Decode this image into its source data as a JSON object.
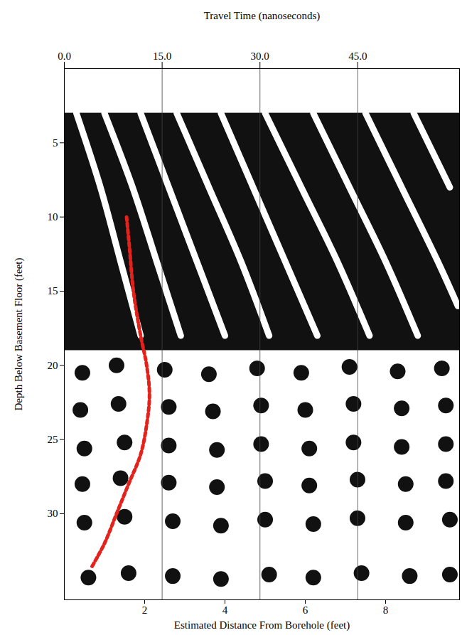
{
  "chart_data": {
    "type": "radargram",
    "x_label": "Estimated Distance From Borehole (feet)",
    "y_label": "Depth Below Basement Floor (feet)",
    "x2_label": "Travel Time (nanoseconds)",
    "xlim": [
      0,
      9.84
    ],
    "xticks": [
      2,
      4,
      6,
      8
    ],
    "x2lim": [
      0,
      60.6
    ],
    "x2ticks": [
      {
        "value": 0,
        "label": "0.0"
      },
      {
        "value": 15,
        "label": "15.0"
      },
      {
        "value": 30,
        "label": "30.0"
      },
      {
        "value": 45,
        "label": "45.0"
      }
    ],
    "ylim": [
      0,
      35.8
    ],
    "yticks": [
      5,
      10,
      15,
      20,
      25,
      30
    ],
    "grid": true,
    "dark_zone": {
      "color": "#111111",
      "depth": [
        3,
        19
      ]
    },
    "ridges": {
      "color": "#ffffff",
      "lines": [
        [
          [
            0.3,
            3
          ],
          [
            0.9,
            8
          ],
          [
            1.4,
            13
          ],
          [
            1.9,
            18
          ]
        ],
        [
          [
            1.0,
            3
          ],
          [
            1.7,
            8
          ],
          [
            2.3,
            13
          ],
          [
            2.9,
            18
          ]
        ],
        [
          [
            1.9,
            3
          ],
          [
            2.6,
            8
          ],
          [
            3.3,
            13
          ],
          [
            4.0,
            18
          ]
        ],
        [
          [
            2.8,
            3
          ],
          [
            3.6,
            8
          ],
          [
            4.4,
            13
          ],
          [
            5.1,
            18
          ]
        ],
        [
          [
            3.9,
            3
          ],
          [
            4.7,
            8
          ],
          [
            5.5,
            13
          ],
          [
            6.3,
            18
          ]
        ],
        [
          [
            5.0,
            3
          ],
          [
            5.9,
            8
          ],
          [
            6.8,
            13
          ],
          [
            7.6,
            18
          ]
        ],
        [
          [
            6.2,
            3
          ],
          [
            7.1,
            8
          ],
          [
            8.0,
            13
          ],
          [
            8.8,
            18
          ]
        ],
        [
          [
            7.5,
            3
          ],
          [
            8.4,
            8
          ],
          [
            9.3,
            13
          ],
          [
            9.8,
            16
          ]
        ],
        [
          [
            8.7,
            3
          ],
          [
            9.6,
            8
          ]
        ]
      ]
    },
    "blobs": {
      "color": "#111111",
      "points": [
        [
          0.45,
          20.5
        ],
        [
          1.3,
          20.0
        ],
        [
          2.5,
          20.3
        ],
        [
          3.6,
          20.6
        ],
        [
          4.8,
          20.2
        ],
        [
          5.9,
          20.5
        ],
        [
          7.1,
          20.1
        ],
        [
          8.3,
          20.4
        ],
        [
          9.4,
          20.2
        ],
        [
          0.4,
          23.0
        ],
        [
          1.35,
          22.6
        ],
        [
          2.6,
          22.8
        ],
        [
          3.7,
          23.1
        ],
        [
          4.9,
          22.7
        ],
        [
          6.0,
          23.0
        ],
        [
          7.2,
          22.6
        ],
        [
          8.4,
          22.9
        ],
        [
          9.5,
          22.7
        ],
        [
          0.5,
          25.6
        ],
        [
          1.5,
          25.2
        ],
        [
          2.6,
          25.4
        ],
        [
          3.8,
          25.7
        ],
        [
          4.9,
          25.3
        ],
        [
          6.1,
          25.6
        ],
        [
          7.2,
          25.2
        ],
        [
          8.4,
          25.5
        ],
        [
          9.5,
          25.3
        ],
        [
          0.45,
          28.0
        ],
        [
          1.4,
          27.6
        ],
        [
          2.6,
          27.9
        ],
        [
          3.8,
          28.2
        ],
        [
          5.0,
          27.8
        ],
        [
          6.1,
          28.1
        ],
        [
          7.3,
          27.7
        ],
        [
          8.5,
          28.0
        ],
        [
          9.5,
          27.8
        ],
        [
          0.5,
          30.6
        ],
        [
          1.5,
          30.2
        ],
        [
          2.7,
          30.5
        ],
        [
          3.9,
          30.8
        ],
        [
          5.0,
          30.4
        ],
        [
          6.2,
          30.7
        ],
        [
          7.3,
          30.3
        ],
        [
          8.5,
          30.6
        ],
        [
          9.6,
          30.4
        ],
        [
          0.6,
          34.3
        ],
        [
          1.6,
          34.0
        ],
        [
          2.7,
          34.2
        ],
        [
          3.9,
          34.4
        ],
        [
          5.1,
          34.1
        ],
        [
          6.2,
          34.3
        ],
        [
          7.4,
          34.0
        ],
        [
          8.6,
          34.2
        ],
        [
          9.6,
          34.1
        ]
      ]
    },
    "reflector": {
      "color": "#e3231b",
      "line_style": "dotted",
      "x": [
        1.55,
        1.62,
        1.72,
        1.9,
        2.05,
        2.12,
        2.05,
        1.9,
        1.6,
        1.3,
        1.0,
        0.68
      ],
      "depth": [
        10,
        12,
        15,
        18,
        20,
        22,
        24,
        26,
        28,
        30,
        32,
        33.6
      ]
    }
  }
}
